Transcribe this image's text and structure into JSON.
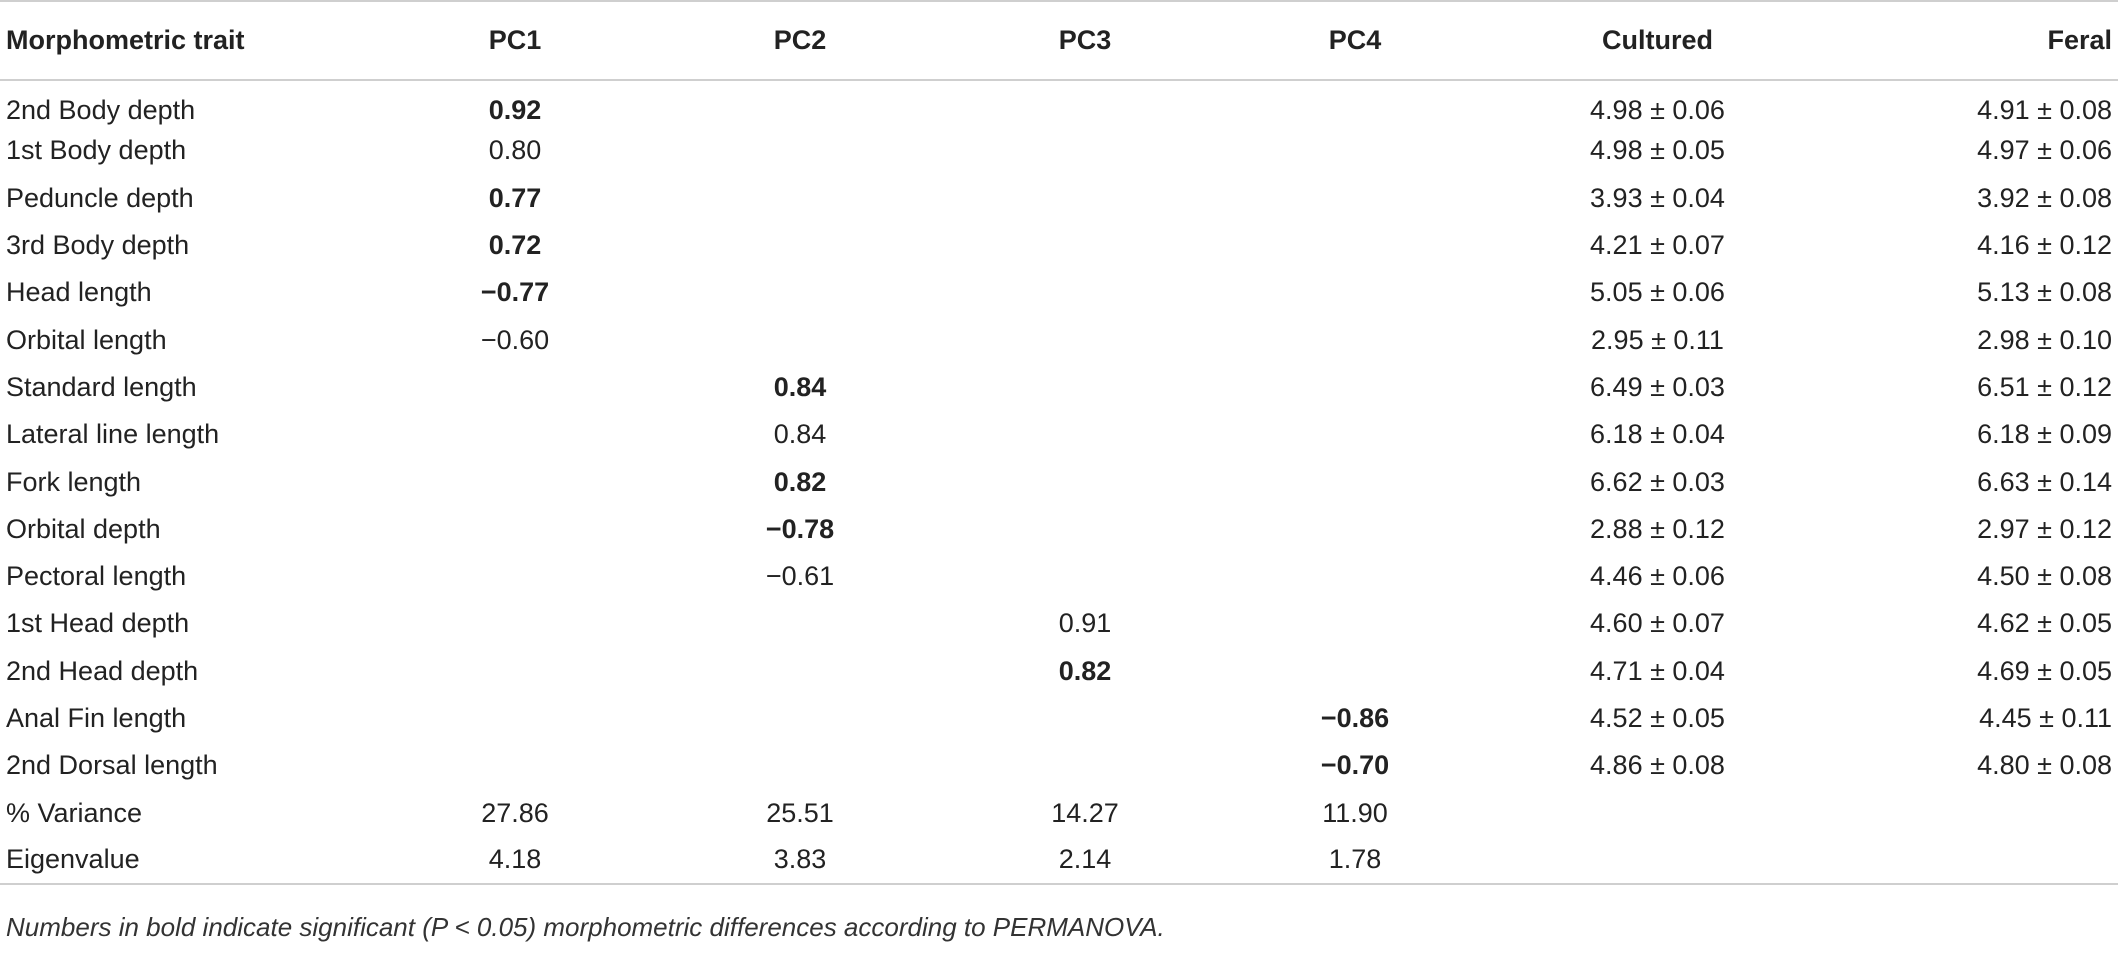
{
  "table": {
    "columns": [
      "Morphometric trait",
      "PC1",
      "PC2",
      "PC3",
      "PC4",
      "Cultured",
      "Feral"
    ],
    "rows": [
      {
        "trait": "2nd Body depth",
        "pc1": "0.92",
        "pc1_bold": true,
        "pc2": "",
        "pc2_bold": false,
        "pc3": "",
        "pc3_bold": false,
        "pc4": "",
        "pc4_bold": false,
        "cultured": "4.98 ± 0.06",
        "feral": "4.91 ± 0.08"
      },
      {
        "trait": "1st Body depth",
        "pc1": "0.80",
        "pc1_bold": false,
        "pc2": "",
        "pc2_bold": false,
        "pc3": "",
        "pc3_bold": false,
        "pc4": "",
        "pc4_bold": false,
        "cultured": "4.98 ± 0.05",
        "feral": "4.97 ± 0.06"
      },
      {
        "trait": "Peduncle depth",
        "pc1": "0.77",
        "pc1_bold": true,
        "pc2": "",
        "pc2_bold": false,
        "pc3": "",
        "pc3_bold": false,
        "pc4": "",
        "pc4_bold": false,
        "cultured": "3.93 ± 0.04",
        "feral": "3.92 ± 0.08"
      },
      {
        "trait": "3rd Body depth",
        "pc1": "0.72",
        "pc1_bold": true,
        "pc2": "",
        "pc2_bold": false,
        "pc3": "",
        "pc3_bold": false,
        "pc4": "",
        "pc4_bold": false,
        "cultured": "4.21 ± 0.07",
        "feral": "4.16 ± 0.12"
      },
      {
        "trait": "Head length",
        "pc1": "−0.77",
        "pc1_bold": true,
        "pc2": "",
        "pc2_bold": false,
        "pc3": "",
        "pc3_bold": false,
        "pc4": "",
        "pc4_bold": false,
        "cultured": "5.05 ± 0.06",
        "feral": "5.13 ± 0.08"
      },
      {
        "trait": "Orbital length",
        "pc1": "−0.60",
        "pc1_bold": false,
        "pc2": "",
        "pc2_bold": false,
        "pc3": "",
        "pc3_bold": false,
        "pc4": "",
        "pc4_bold": false,
        "cultured": "2.95 ± 0.11",
        "feral": "2.98 ± 0.10"
      },
      {
        "trait": "Standard length",
        "pc1": "",
        "pc1_bold": false,
        "pc2": "0.84",
        "pc2_bold": true,
        "pc3": "",
        "pc3_bold": false,
        "pc4": "",
        "pc4_bold": false,
        "cultured": "6.49 ± 0.03",
        "feral": "6.51 ± 0.12"
      },
      {
        "trait": "Lateral line length",
        "pc1": "",
        "pc1_bold": false,
        "pc2": "0.84",
        "pc2_bold": false,
        "pc3": "",
        "pc3_bold": false,
        "pc4": "",
        "pc4_bold": false,
        "cultured": "6.18 ± 0.04",
        "feral": "6.18 ± 0.09"
      },
      {
        "trait": "Fork length",
        "pc1": "",
        "pc1_bold": false,
        "pc2": "0.82",
        "pc2_bold": true,
        "pc3": "",
        "pc3_bold": false,
        "pc4": "",
        "pc4_bold": false,
        "cultured": "6.62 ± 0.03",
        "feral": "6.63 ± 0.14"
      },
      {
        "trait": "Orbital depth",
        "pc1": "",
        "pc1_bold": false,
        "pc2": "−0.78",
        "pc2_bold": true,
        "pc3": "",
        "pc3_bold": false,
        "pc4": "",
        "pc4_bold": false,
        "cultured": "2.88 ± 0.12",
        "feral": "2.97 ± 0.12"
      },
      {
        "trait": "Pectoral length",
        "pc1": "",
        "pc1_bold": false,
        "pc2": "−0.61",
        "pc2_bold": false,
        "pc3": "",
        "pc3_bold": false,
        "pc4": "",
        "pc4_bold": false,
        "cultured": "4.46 ± 0.06",
        "feral": "4.50 ± 0.08"
      },
      {
        "trait": "1st Head depth",
        "pc1": "",
        "pc1_bold": false,
        "pc2": "",
        "pc2_bold": false,
        "pc3": "0.91",
        "pc3_bold": false,
        "pc4": "",
        "pc4_bold": false,
        "cultured": "4.60 ± 0.07",
        "feral": "4.62 ± 0.05"
      },
      {
        "trait": "2nd Head depth",
        "pc1": "",
        "pc1_bold": false,
        "pc2": "",
        "pc2_bold": false,
        "pc3": "0.82",
        "pc3_bold": true,
        "pc4": "",
        "pc4_bold": false,
        "cultured": "4.71 ± 0.04",
        "feral": "4.69 ± 0.05"
      },
      {
        "trait": "Anal Fin length",
        "pc1": "",
        "pc1_bold": false,
        "pc2": "",
        "pc2_bold": false,
        "pc3": "",
        "pc3_bold": false,
        "pc4": "−0.86",
        "pc4_bold": true,
        "cultured": "4.52 ± 0.05",
        "feral": "4.45 ± 0.11"
      },
      {
        "trait": "2nd Dorsal length",
        "pc1": "",
        "pc1_bold": false,
        "pc2": "",
        "pc2_bold": false,
        "pc3": "",
        "pc3_bold": false,
        "pc4": "−0.70",
        "pc4_bold": true,
        "cultured": "4.86 ± 0.08",
        "feral": "4.80 ± 0.08"
      },
      {
        "trait": "% Variance",
        "pc1": "27.86",
        "pc1_bold": false,
        "pc2": "25.51",
        "pc2_bold": false,
        "pc3": "14.27",
        "pc3_bold": false,
        "pc4": "11.90",
        "pc4_bold": false,
        "cultured": "",
        "feral": ""
      },
      {
        "trait": "Eigenvalue",
        "pc1": "4.18",
        "pc1_bold": false,
        "pc2": "3.83",
        "pc2_bold": false,
        "pc3": "2.14",
        "pc3_bold": false,
        "pc4": "1.78",
        "pc4_bold": false,
        "cultured": "",
        "feral": ""
      }
    ]
  },
  "footnote": "Numbers in bold indicate significant (P < 0.05) morphometric differences according to PERMANOVA."
}
